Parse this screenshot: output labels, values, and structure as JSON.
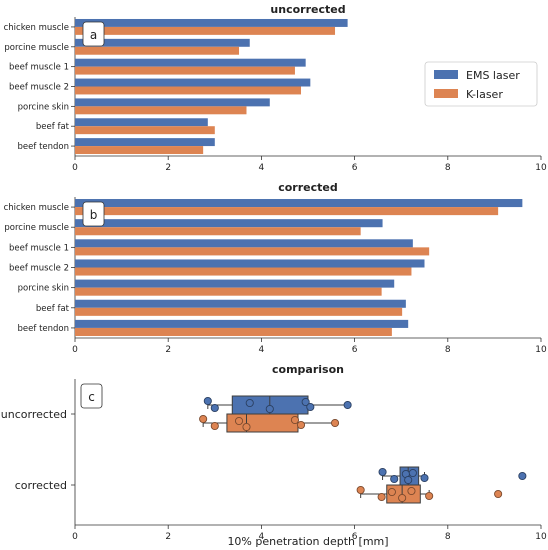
{
  "chart_data": [
    {
      "type": "bar",
      "orientation": "horizontal",
      "panel_label": "a",
      "title": "uncorrected",
      "categories": [
        "chicken muscle",
        "porcine muscle",
        "beef muscle 1",
        "beef muscle 2",
        "porcine skin",
        "beef fat",
        "beef tendon"
      ],
      "series": [
        {
          "name": "EMS laser",
          "values": [
            5.85,
            3.75,
            4.95,
            5.05,
            4.18,
            2.85,
            3.0
          ]
        },
        {
          "name": "K-laser",
          "values": [
            5.58,
            3.52,
            4.72,
            4.85,
            3.68,
            3.0,
            2.75
          ]
        }
      ],
      "xlim": [
        0,
        10
      ],
      "xticks": [
        "0",
        "2",
        "4",
        "6",
        "8",
        "10"
      ],
      "legend_position": "right"
    },
    {
      "type": "bar",
      "orientation": "horizontal",
      "panel_label": "b",
      "title": "corrected",
      "categories": [
        "chicken muscle",
        "porcine muscle",
        "beef muscle 1",
        "beef muscle 2",
        "porcine skin",
        "beef fat",
        "beef tendon"
      ],
      "series": [
        {
          "name": "EMS laser",
          "values": [
            9.6,
            6.6,
            7.25,
            7.5,
            6.85,
            7.1,
            7.15
          ]
        },
        {
          "name": "K-laser",
          "values": [
            9.08,
            6.13,
            7.6,
            7.22,
            6.58,
            7.02,
            6.8
          ]
        }
      ],
      "xlim": [
        0,
        10
      ],
      "xticks": [
        "0",
        "2",
        "4",
        "6",
        "8",
        "10"
      ]
    },
    {
      "type": "box",
      "panel_label": "c",
      "title": "comparison",
      "xlabel": "10% penetration depth [mm]",
      "categories": [
        "uncorrected",
        "corrected"
      ],
      "series": [
        {
          "name": "EMS laser",
          "points": [
            [
              2.85,
              3.0,
              3.75,
              4.18,
              4.95,
              5.05,
              5.85
            ],
            [
              6.6,
              6.85,
              7.1,
              7.15,
              7.25,
              7.5,
              9.6
            ]
          ]
        },
        {
          "name": "K-laser",
          "points": [
            [
              2.75,
              3.0,
              3.52,
              3.68,
              4.72,
              4.85,
              5.58
            ],
            [
              6.13,
              6.58,
              6.8,
              7.02,
              7.22,
              7.6,
              9.08
            ]
          ]
        }
      ],
      "xlim": [
        0,
        10
      ],
      "xticks": [
        "0",
        "2",
        "4",
        "6",
        "8",
        "10"
      ]
    }
  ],
  "colors": {
    "ems": "#4c72b0",
    "k": "#dd8452"
  }
}
